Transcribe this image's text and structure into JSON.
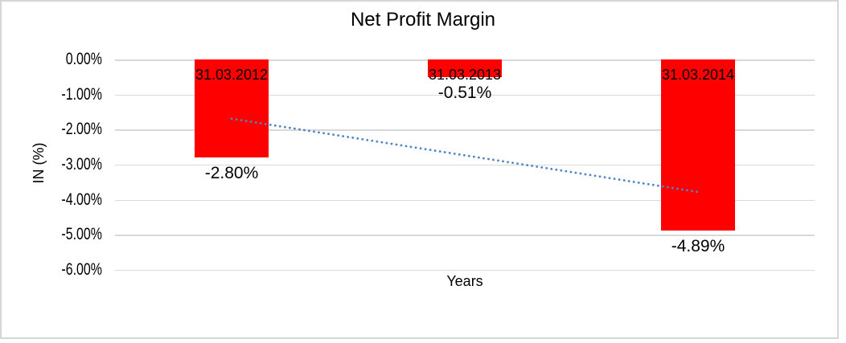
{
  "chart_data": {
    "type": "bar",
    "title": "Net Profit Margin",
    "xlabel": "Years",
    "ylabel": "IN (%)",
    "categories": [
      "31.03.2012",
      "31.03.2013",
      "31.03.2014"
    ],
    "values": [
      -2.8,
      -0.51,
      -4.89
    ],
    "data_labels": [
      "-2.80%",
      "-0.51%",
      "-4.89%"
    ],
    "y_tick_labels": [
      "0.00%",
      "-1.00%",
      "-2.00%",
      "-3.00%",
      "-4.00%",
      "-5.00%",
      "-6.00%"
    ],
    "ylim": [
      -6,
      0
    ],
    "y_tick_step": 1,
    "grid": true,
    "legend": false,
    "bar_color": "#ff0000",
    "gridline_color": "#d9d9d9",
    "label_color": "#000000",
    "trendline": {
      "type": "linear",
      "style": "dotted",
      "color": "#4e86c4",
      "start_value": -1.69,
      "end_value": -3.78
    }
  }
}
